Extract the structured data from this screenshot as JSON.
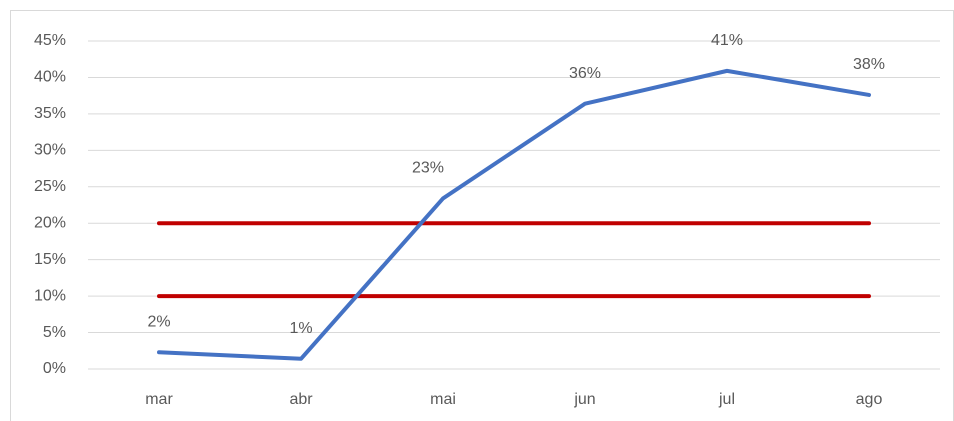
{
  "chart_data": {
    "type": "line",
    "categories": [
      "mar",
      "abr",
      "mai",
      "jun",
      "jul",
      "ago"
    ],
    "series": [
      {
        "color": "#4472c4",
        "values": [
          2.3,
          1.4,
          23.4,
          36.4,
          40.9,
          37.6
        ],
        "value_labels": [
          "2%",
          "1%",
          "23%",
          "36%",
          "41%",
          "38%"
        ]
      },
      {
        "color": "#c00000",
        "values": [
          20,
          20,
          20,
          20,
          20,
          20
        ]
      },
      {
        "color": "#c00000",
        "values": [
          10,
          10,
          10,
          10,
          10,
          10
        ]
      }
    ],
    "ylim": [
      0,
      45
    ],
    "yticks": [
      {
        "value": 0,
        "label": "0%"
      },
      {
        "value": 5,
        "label": "5%"
      },
      {
        "value": 10,
        "label": "10%"
      },
      {
        "value": 15,
        "label": "15%"
      },
      {
        "value": 20,
        "label": "20%"
      },
      {
        "value": 25,
        "label": "25%"
      },
      {
        "value": 30,
        "label": "30%"
      },
      {
        "value": 35,
        "label": "35%"
      },
      {
        "value": 40,
        "label": "40%"
      },
      {
        "value": 45,
        "label": "45%"
      }
    ],
    "grid": true
  }
}
